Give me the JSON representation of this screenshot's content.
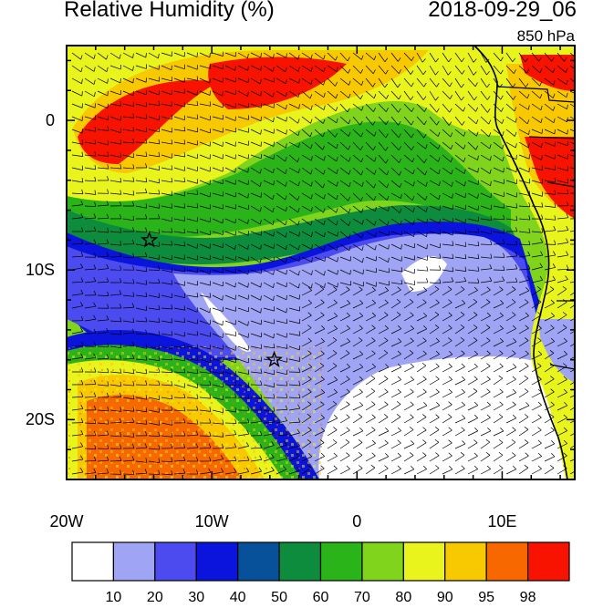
{
  "header": {
    "title": "Relative Humidity (%)",
    "datetime": "2018-09-29_06",
    "level": "850 hPa"
  },
  "map": {
    "lon_range": [
      -20,
      15
    ],
    "lat_range": [
      -24,
      5
    ],
    "lon_ticks": [
      {
        "value": -20,
        "label": "20W"
      },
      {
        "value": -10,
        "label": "10W"
      },
      {
        "value": 0,
        "label": "0"
      },
      {
        "value": 10,
        "label": "10E"
      }
    ],
    "lat_ticks": [
      {
        "value": 0,
        "label": "0"
      },
      {
        "value": -10,
        "label": "10S"
      },
      {
        "value": -20,
        "label": "20S"
      }
    ],
    "markers": [
      {
        "name": "star",
        "lon": -14.3,
        "lat": -8.0
      },
      {
        "name": "star",
        "lon": -5.7,
        "lat": -16.0
      }
    ]
  },
  "colorbar": {
    "colors": [
      "#ffffff",
      "#a0a4f4",
      "#4b4bf0",
      "#0a14dc",
      "#07509a",
      "#0c8c3c",
      "#2bb41a",
      "#80d41c",
      "#e8f41c",
      "#f8c800",
      "#f86800",
      "#f81200"
    ],
    "labels": [
      "10",
      "20",
      "30",
      "40",
      "50",
      "60",
      "70",
      "80",
      "90",
      "95",
      "98"
    ]
  }
}
